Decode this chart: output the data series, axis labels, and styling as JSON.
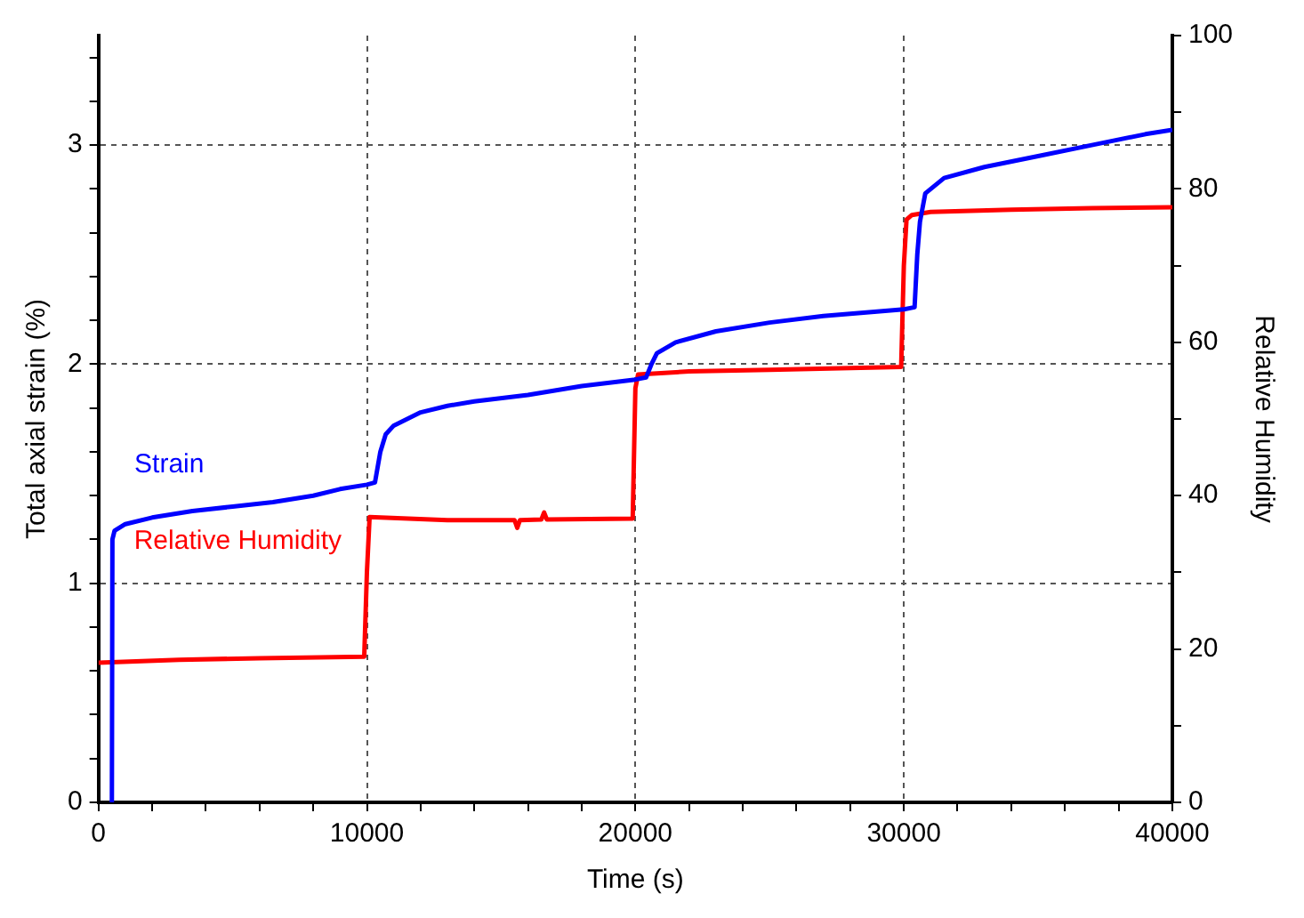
{
  "chart_data": {
    "type": "line",
    "xlabel": "Time (s)",
    "ylabel": "Total axial strain (%)",
    "y2label": "Relative Humidity",
    "xlim": [
      0,
      40000
    ],
    "xticks": [
      0,
      {
        "value": 2000,
        "label": null
      },
      {
        "value": 4000,
        "label": null
      },
      {
        "value": 6000,
        "label": null
      },
      {
        "value": 8000,
        "label": null
      },
      10000,
      {
        "value": 12000,
        "label": null
      },
      {
        "value": 14000,
        "label": null
      },
      {
        "value": 16000,
        "label": null
      },
      {
        "value": 18000,
        "label": null
      },
      20000,
      {
        "value": 22000,
        "label": null
      },
      {
        "value": 24000,
        "label": null
      },
      {
        "value": 26000,
        "label": null
      },
      {
        "value": 28000,
        "label": null
      },
      30000,
      {
        "value": 32000,
        "label": null
      },
      {
        "value": 34000,
        "label": null
      },
      {
        "value": 36000,
        "label": null
      },
      {
        "value": 38000,
        "label": null
      },
      40000
    ],
    "ylim": [
      0,
      3.5
    ],
    "yticks": [
      0,
      {
        "value": 0.2,
        "label": null
      },
      {
        "value": 0.4,
        "label": null
      },
      {
        "value": 0.6,
        "label": null
      },
      {
        "value": 0.8,
        "label": null
      },
      1,
      {
        "value": 1.2,
        "label": null
      },
      {
        "value": 1.4,
        "label": null
      },
      {
        "value": 1.6,
        "label": null
      },
      {
        "value": 1.8,
        "label": null
      },
      2,
      {
        "value": 2.2,
        "label": null
      },
      {
        "value": 2.4,
        "label": null
      },
      {
        "value": 2.6,
        "label": null
      },
      {
        "value": 2.8,
        "label": null
      },
      3,
      {
        "value": 3.2,
        "label": null
      },
      {
        "value": 3.4,
        "label": null
      }
    ],
    "y2lim": [
      0,
      100
    ],
    "y2ticks": [
      0,
      {
        "value": 10,
        "label": null
      },
      20,
      {
        "value": 30,
        "label": null
      },
      40,
      {
        "value": 50,
        "label": null
      },
      60,
      {
        "value": 70,
        "label": null
      },
      80,
      {
        "value": 90,
        "label": null
      },
      100
    ],
    "grid": true,
    "legend": false,
    "marker": "none",
    "line_style": "solid",
    "series": [
      {
        "name": "Strain",
        "color": "#0000ff",
        "x": [
          500,
          520,
          600,
          1000,
          2000,
          3500,
          5000,
          6500,
          8000,
          9000,
          10000,
          10300,
          10500,
          10700,
          11000,
          12000,
          13000,
          14000,
          16000,
          18000,
          20000,
          20400,
          20600,
          20800,
          21500,
          23000,
          25000,
          27000,
          29000,
          30000,
          30400,
          30500,
          30600,
          30800,
          31500,
          33000,
          35000,
          37000,
          39000,
          40000
        ],
        "values": [
          0,
          1.2,
          1.24,
          1.27,
          1.3,
          1.33,
          1.35,
          1.37,
          1.4,
          1.43,
          1.45,
          1.46,
          1.6,
          1.68,
          1.72,
          1.78,
          1.81,
          1.83,
          1.86,
          1.9,
          1.93,
          1.94,
          2.0,
          2.05,
          2.1,
          2.15,
          2.19,
          2.22,
          2.24,
          2.25,
          2.26,
          2.5,
          2.65,
          2.78,
          2.85,
          2.9,
          2.95,
          3.0,
          3.05,
          3.07
        ]
      },
      {
        "name": "Relative Humidity",
        "color": "#ff0000",
        "axis": "y2",
        "x": [
          0,
          3000,
          6000,
          9900,
          10000,
          10100,
          13000,
          15500,
          15600,
          15700,
          16500,
          16600,
          16700,
          19900,
          20000,
          20100,
          22000,
          25000,
          29900,
          30000,
          30100,
          30300,
          31000,
          34000,
          37000,
          40000
        ],
        "values": [
          18.2,
          18.6,
          18.8,
          19,
          30,
          37.2,
          36.8,
          36.8,
          35.8,
          36.8,
          36.9,
          37.8,
          36.9,
          37,
          54,
          55.8,
          56.2,
          56.4,
          56.8,
          70,
          76,
          76.6,
          77,
          77.3,
          77.5,
          77.6
        ]
      }
    ]
  }
}
